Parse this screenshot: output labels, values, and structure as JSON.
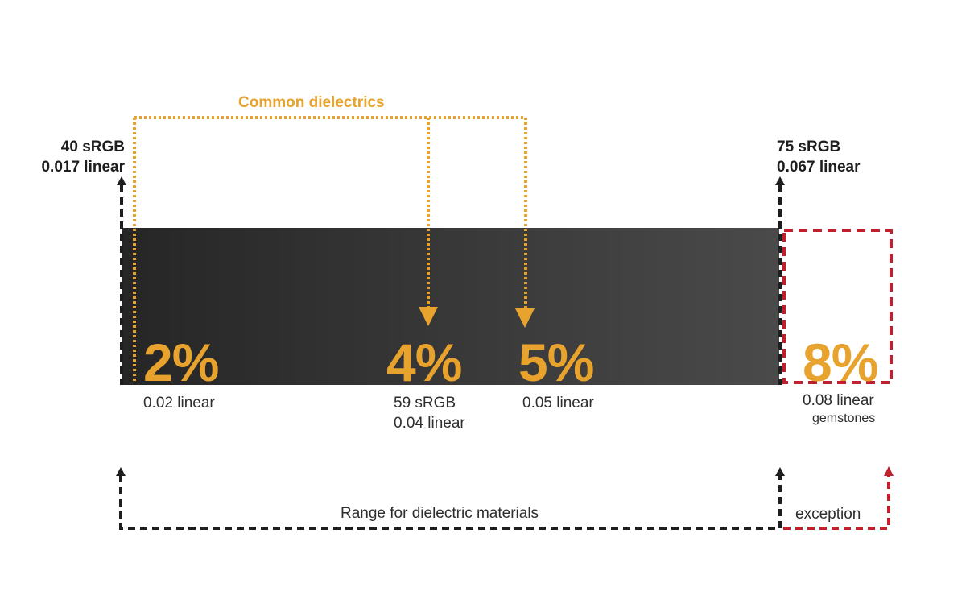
{
  "colors": {
    "bar_left": "#262626",
    "bar_right": "#4a4a4a",
    "orange": "#e8a22e",
    "black": "#1e1e1e",
    "red": "#c0202e",
    "text": "#2e2e2e"
  },
  "common_dielectrics": {
    "label": "Common dielectrics"
  },
  "range_min": {
    "srgb": "40 sRGB",
    "linear": "0.017 linear"
  },
  "range_max": {
    "srgb": "75 sRGB",
    "linear": "0.067 linear"
  },
  "markers": [
    {
      "percent": "2%",
      "sub1": "0.02 linear",
      "sub2": ""
    },
    {
      "percent": "4%",
      "sub1": "59 sRGB",
      "sub2": "0.04 linear"
    },
    {
      "percent": "5%",
      "sub1": "0.05 linear",
      "sub2": ""
    },
    {
      "percent": "8%",
      "sub1": "0.08 linear",
      "sub2": "gemstones"
    }
  ],
  "range_label": "Range for dielectric materials",
  "exception_label": "exception"
}
